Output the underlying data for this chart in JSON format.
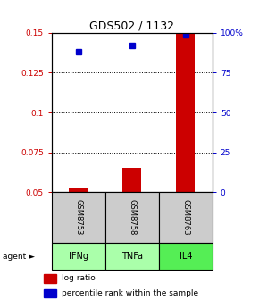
{
  "title": "GDS502 / 1132",
  "samples": [
    "GSM8753",
    "GSM8758",
    "GSM8763"
  ],
  "agents": [
    "IFNg",
    "TNFa",
    "IL4"
  ],
  "log_ratio": [
    0.052,
    0.065,
    0.15
  ],
  "percentile_rank": [
    0.138,
    0.142,
    0.149
  ],
  "ylim": [
    0.05,
    0.15
  ],
  "yticks_left": [
    0.05,
    0.075,
    0.1,
    0.125,
    0.15
  ],
  "yticks_right": [
    0,
    25,
    50,
    75,
    100
  ],
  "yticks_right_vals": [
    0.05,
    0.075,
    0.1,
    0.125,
    0.15
  ],
  "gridlines": [
    0.075,
    0.1,
    0.125
  ],
  "bar_color": "#cc0000",
  "dot_color": "#0000cc",
  "agent_colors": [
    "#aaffaa",
    "#aaffaa",
    "#55ee55"
  ],
  "sample_box_color": "#cccccc",
  "left_axis_color": "#cc0000",
  "right_axis_color": "#0000cc",
  "bar_width": 0.35,
  "fig_width": 2.9,
  "fig_height": 3.36,
  "dpi": 100
}
